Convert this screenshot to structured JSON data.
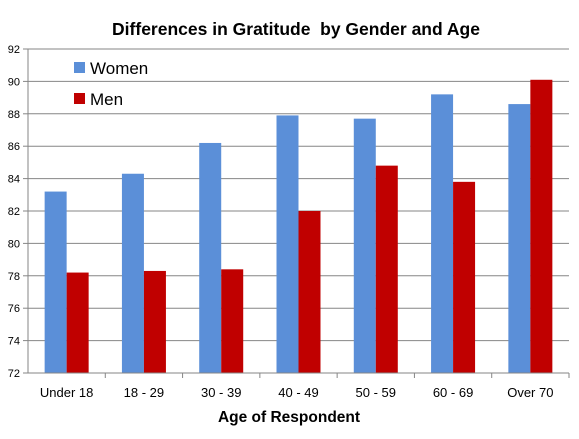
{
  "chart_data": {
    "type": "bar",
    "title": "Differences in Gratitude  by Gender and Age",
    "xlabel": "Age of Respondent",
    "ylabel": "",
    "categories": [
      "Under 18",
      "18 - 29",
      "30 - 39",
      "40 - 49",
      "50 - 59",
      "60 - 69",
      "Over 70"
    ],
    "series": [
      {
        "name": "Women",
        "color": "#5B8FD8",
        "values": [
          83.2,
          84.3,
          86.2,
          87.9,
          87.7,
          89.2,
          88.6
        ]
      },
      {
        "name": "Men",
        "color": "#C00000",
        "values": [
          78.2,
          78.3,
          78.4,
          82.0,
          84.8,
          83.8,
          90.1
        ]
      }
    ],
    "ylim": [
      72,
      92
    ],
    "yticks": [
      "72",
      "74",
      "76",
      "78",
      "80",
      "82",
      "84",
      "86",
      "88",
      "90",
      "92"
    ],
    "grid": true,
    "legend_position": "top-left"
  }
}
